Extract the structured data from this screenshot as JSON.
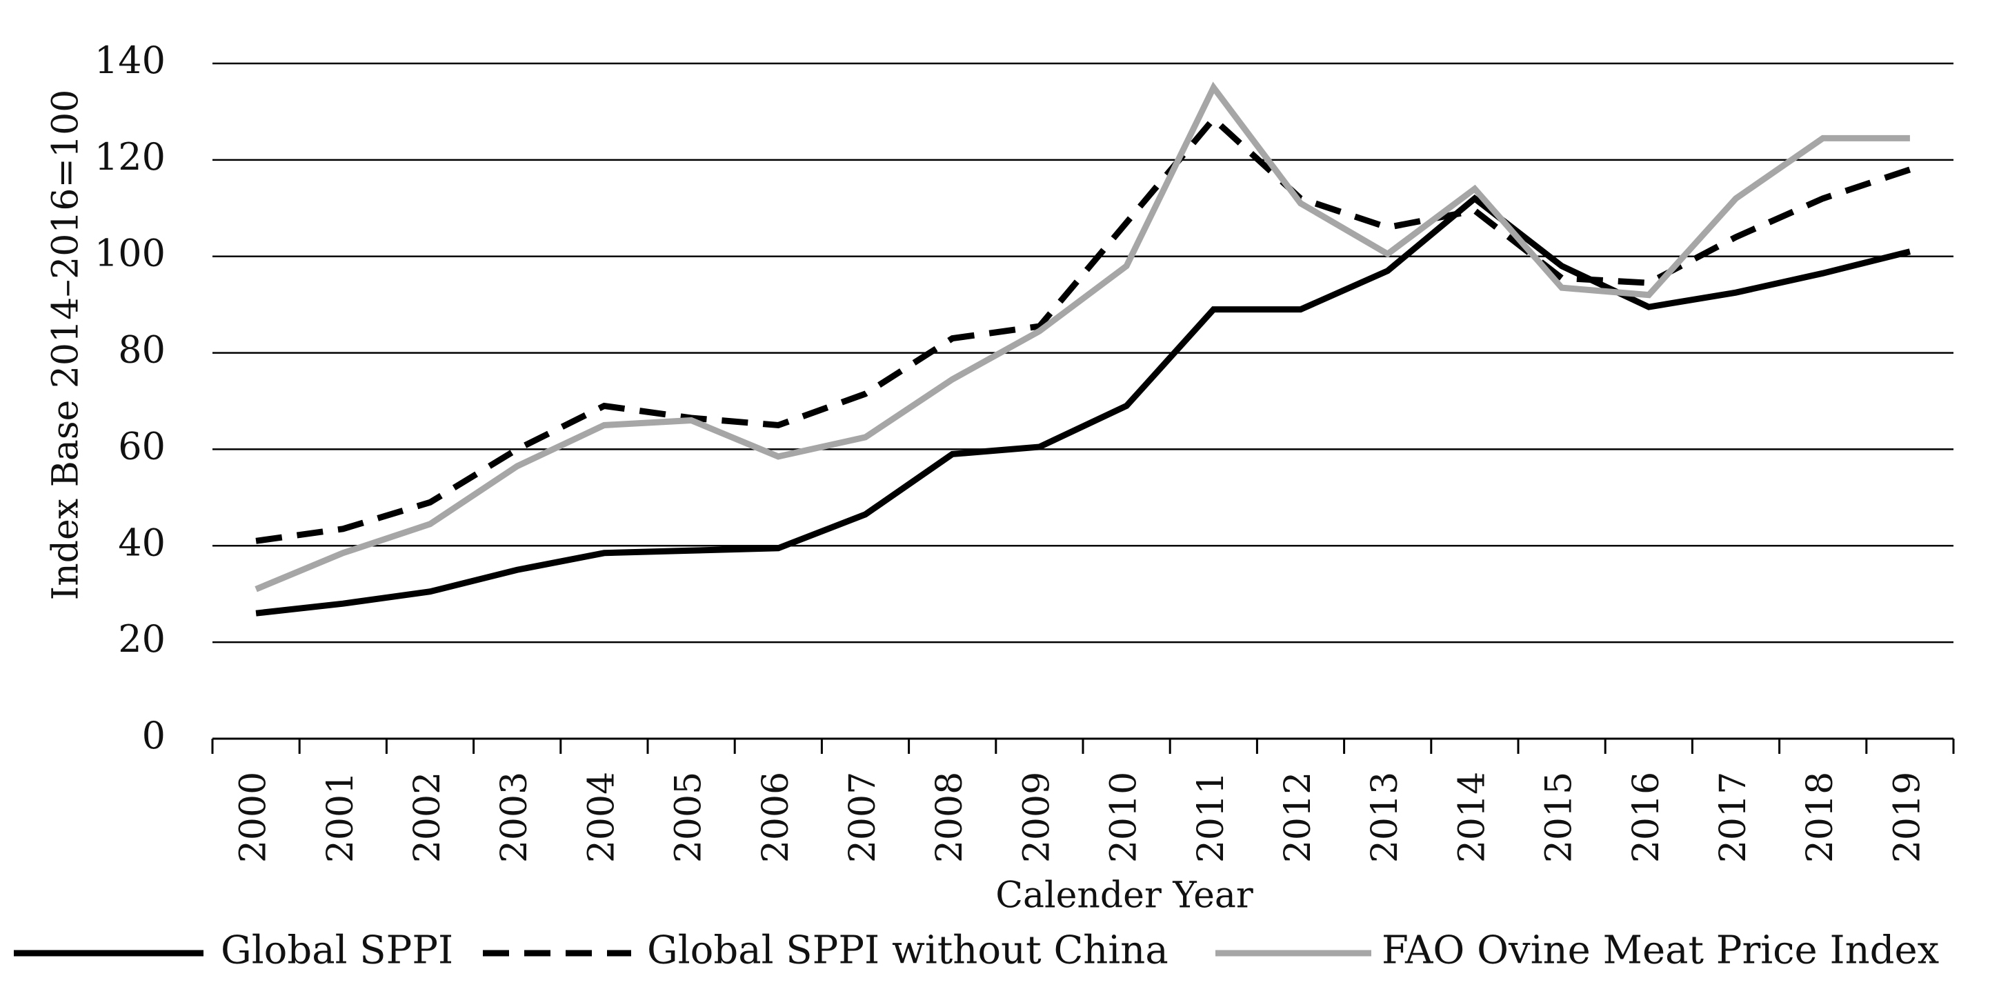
{
  "chart_data": {
    "type": "line",
    "title": "",
    "xlabel": "Calender Year",
    "ylabel": "Index Base 2014–2016=100",
    "ylim": [
      0,
      140
    ],
    "yticks": [
      0,
      20,
      40,
      60,
      80,
      100,
      120,
      140
    ],
    "grid": true,
    "legend_position": "bottom",
    "categories": [
      "2000",
      "2001",
      "2002",
      "2003",
      "2004",
      "2005",
      "2006",
      "2007",
      "2008",
      "2009",
      "2010",
      "2011",
      "2012",
      "2013",
      "2014",
      "2015",
      "2016",
      "2017",
      "2018",
      "2019"
    ],
    "series": [
      {
        "name": "Global SPPI",
        "style": "solid",
        "color": "#000000",
        "values": [
          26,
          28,
          30.5,
          35,
          38.5,
          39,
          39.5,
          46.5,
          59,
          60.5,
          69,
          89,
          89,
          97,
          112,
          98,
          89.5,
          92.5,
          96.5,
          101
        ]
      },
      {
        "name": "Global SPPI without China",
        "style": "dashed",
        "color": "#000000",
        "values": [
          41,
          43.5,
          49,
          60,
          69,
          66.5,
          65,
          71.5,
          83,
          85.5,
          107,
          128.5,
          112,
          106,
          109.5,
          95.5,
          94.5,
          104,
          112,
          118
        ]
      },
      {
        "name": "FAO Ovine Meat Price Index",
        "style": "solid",
        "color": "#a6a6a6",
        "values": [
          31,
          38.5,
          44.5,
          56.5,
          65,
          66,
          58.5,
          62.5,
          74.5,
          84.5,
          98,
          135,
          111,
          100.5,
          114,
          93.5,
          92,
          112,
          124.5,
          124.5
        ]
      }
    ]
  }
}
